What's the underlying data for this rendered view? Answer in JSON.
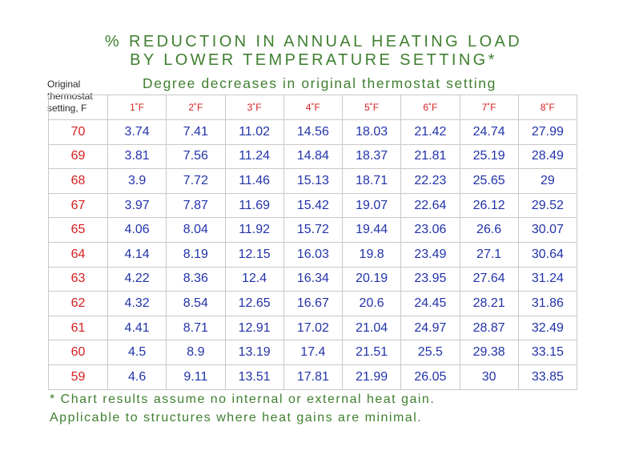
{
  "title": {
    "line1": "% REDUCTION IN ANNUAL HEATING LOAD",
    "line2": "BY LOWER TEMPERATURE SETTING*"
  },
  "subtitle": "Degree decreases in original thermostat setting",
  "row_header": {
    "line1": "Original",
    "line2": "thermostat",
    "line3": "setting,  F"
  },
  "columns": [
    "1˚F",
    "2˚F",
    "3˚F",
    "4˚F",
    "5˚F",
    "6˚F",
    "7˚F",
    "8˚F"
  ],
  "rows": [
    {
      "setting": "70",
      "values": [
        "3.74",
        "7.41",
        "11.02",
        "14.56",
        "18.03",
        "21.42",
        "24.74",
        "27.99"
      ]
    },
    {
      "setting": "69",
      "values": [
        "3.81",
        "7.56",
        "11.24",
        "14.84",
        "18.37",
        "21.81",
        "25.19",
        "28.49"
      ]
    },
    {
      "setting": "68",
      "values": [
        "3.9",
        "7.72",
        "11.46",
        "15.13",
        "18.71",
        "22.23",
        "25.65",
        "29"
      ]
    },
    {
      "setting": "67",
      "values": [
        "3.97",
        "7.87",
        "11.69",
        "15.42",
        "19.07",
        "22.64",
        "26.12",
        "29.52"
      ]
    },
    {
      "setting": "65",
      "values": [
        "4.06",
        "8.04",
        "11.92",
        "15.72",
        "19.44",
        "23.06",
        "26.6",
        "30.07"
      ]
    },
    {
      "setting": "64",
      "values": [
        "4.14",
        "8.19",
        "12.15",
        "16.03",
        "19.8",
        "23.49",
        "27.1",
        "30.64"
      ]
    },
    {
      "setting": "63",
      "values": [
        "4.22",
        "8.36",
        "12.4",
        "16.34",
        "20.19",
        "23.95",
        "27.64",
        "31.24"
      ]
    },
    {
      "setting": "62",
      "values": [
        "4.32",
        "8.54",
        "12.65",
        "16.67",
        "20.6",
        "24.45",
        "28.21",
        "31.86"
      ]
    },
    {
      "setting": "61",
      "values": [
        "4.41",
        "8.71",
        "12.91",
        "17.02",
        "21.04",
        "24.97",
        "28.87",
        "32.49"
      ]
    },
    {
      "setting": "60",
      "values": [
        "4.5",
        "8.9",
        "13.19",
        "17.4",
        "21.51",
        "25.5",
        "29.38",
        "33.15"
      ]
    },
    {
      "setting": "59",
      "values": [
        "4.6",
        "9.11",
        "13.51",
        "17.81",
        "21.99",
        "26.05",
        "30",
        "33.85"
      ]
    }
  ],
  "footnote": {
    "line1": "* Chart results assume no internal or external heat gain.",
    "line2": "Applicable to structures where heat gains are minimal."
  },
  "colors": {
    "title": "#3f7f2f",
    "setting": "#d42020",
    "values": "#2233aa",
    "grid": "#c9c9c9"
  }
}
